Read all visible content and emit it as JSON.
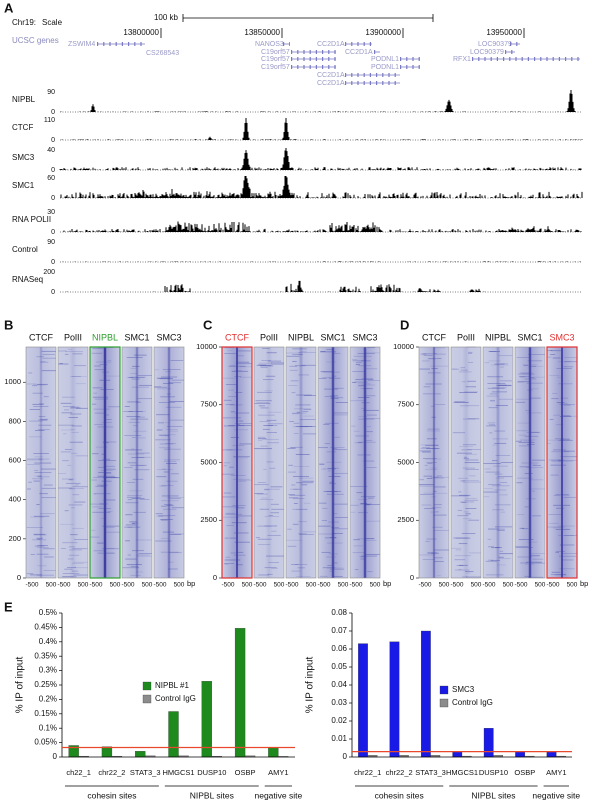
{
  "panel_labels": [
    "A",
    "B",
    "C",
    "D",
    "E"
  ],
  "browser": {
    "chrom": "Chr19:",
    "scale": "Scale",
    "scale_bar": "100 kb",
    "gene_track": "UCSC genes",
    "positions": [
      13800000,
      13850000,
      13900000,
      13950000
    ],
    "genes": [
      "ZSWIM4",
      "CS268543",
      "NANOS3",
      "C19orf57",
      "C19orf57",
      "C19orf57",
      "CC2D1A",
      "CC2D1A",
      "PODNL1",
      "PODNL1",
      "CC2D1A",
      "CC2D1A",
      "LOC90379",
      "LOC90379",
      "RFX1"
    ],
    "tracks": [
      {
        "label": "NIPBL",
        "max": 90,
        "min": 0
      },
      {
        "label": "CTCF",
        "max": 110,
        "min": 0
      },
      {
        "label": "SMC3",
        "max": 40,
        "min": 0
      },
      {
        "label": "SMC1",
        "max": 60,
        "min": 0
      },
      {
        "label": "RNA POLII",
        "max": 30,
        "min": 0
      },
      {
        "label": "Control",
        "max": 90,
        "min": 0
      },
      {
        "label": "RNASeq",
        "max": 200,
        "min": 0
      }
    ]
  },
  "heatmaps": [
    {
      "columns": [
        "CTCF",
        "PolII",
        "NIPBL",
        "SMC1",
        "SMC3"
      ],
      "highlight": 2,
      "highlight_color": "#2e9e2e",
      "ylim": [
        0,
        1180
      ],
      "yticks": [
        0,
        200,
        400,
        600,
        800,
        1000
      ],
      "xticks": [
        -500,
        500
      ],
      "xunit": "bp"
    },
    {
      "columns": [
        "CTCF",
        "PolII",
        "NIPBL",
        "SMC1",
        "SMC3"
      ],
      "highlight": 0,
      "highlight_color": "#e03030",
      "ylim": [
        0,
        10000
      ],
      "yticks": [
        0,
        2500,
        5000,
        7500,
        10000
      ],
      "xticks": [
        -500,
        500
      ],
      "xunit": "bp"
    },
    {
      "columns": [
        "CTCF",
        "PolII",
        "NIPBL",
        "SMC1",
        "SMC3"
      ],
      "highlight": 4,
      "highlight_color": "#e03030",
      "ylim": [
        0,
        10000
      ],
      "yticks": [
        0,
        2500,
        5000,
        7500,
        10000
      ],
      "xticks": [
        -500,
        500
      ],
      "xunit": "bp"
    }
  ],
  "chart_data": [
    {
      "type": "bar",
      "ylabel": "% IP of input",
      "categories": [
        "ch22_1",
        "chr22_2",
        "STAT3_3",
        "HMGCS1",
        "DUSP10",
        "OSBP",
        "AMY1"
      ],
      "groups": [
        "cohesin sites",
        "NIPBL sites",
        "negative site"
      ],
      "series": [
        {
          "name": "NIPBL #1",
          "color": "#1e8a1e",
          "values": [
            0.04,
            0.036,
            0.02,
            0.158,
            0.263,
            0.447,
            0.034
          ]
        },
        {
          "name": "Control IgG",
          "color": "#8c8c8c",
          "values": [
            0.003,
            0.003,
            0.004,
            0.004,
            0.003,
            0.004,
            0.002
          ]
        }
      ],
      "ylim": [
        0,
        0.5
      ],
      "yticks": [
        0,
        {
          "value": 0.05,
          "label": "0.05%"
        },
        {
          "value": 0.1,
          "label": "0.1%"
        },
        {
          "value": 0.15,
          "label": "0.15%"
        },
        {
          "value": 0.2,
          "label": "0.2%"
        },
        {
          "value": 0.25,
          "label": "0.25%"
        },
        {
          "value": 0.3,
          "label": "0.3%"
        },
        {
          "value": 0.35,
          "label": "0.35%"
        },
        {
          "value": 0.4,
          "label": "0.4%"
        },
        {
          "value": 0.45,
          "label": "0.45%"
        },
        {
          "value": 0.5,
          "label": "0.5%"
        }
      ],
      "hline": 0.033,
      "hline_color": "#e8482c"
    },
    {
      "type": "bar",
      "ylabel": "% IP of input",
      "categories": [
        "chr22_1",
        "chr22_2",
        "STAT3_3",
        "HMGCS1",
        "DUSP10",
        "OSBP",
        "AMY1"
      ],
      "groups": [
        "cohesin sites",
        "NIPBL sites",
        "negative site"
      ],
      "series": [
        {
          "name": "SMC3",
          "color": "#1a1ae6",
          "values": [
            0.063,
            0.064,
            0.07,
            0.003,
            0.016,
            0.003,
            0.003
          ]
        },
        {
          "name": "Control IgG",
          "color": "#8c8c8c",
          "values": [
            0.001,
            0.001,
            0.001,
            0.0005,
            0.001,
            0.0005,
            0.0005
          ]
        }
      ],
      "ylim": [
        0,
        0.08
      ],
      "yticks": [
        0,
        0.01,
        0.02,
        0.03,
        0.04,
        0.05,
        0.06,
        0.07,
        0.08
      ],
      "hline": 0.003,
      "hline_color": "#e8482c"
    }
  ]
}
